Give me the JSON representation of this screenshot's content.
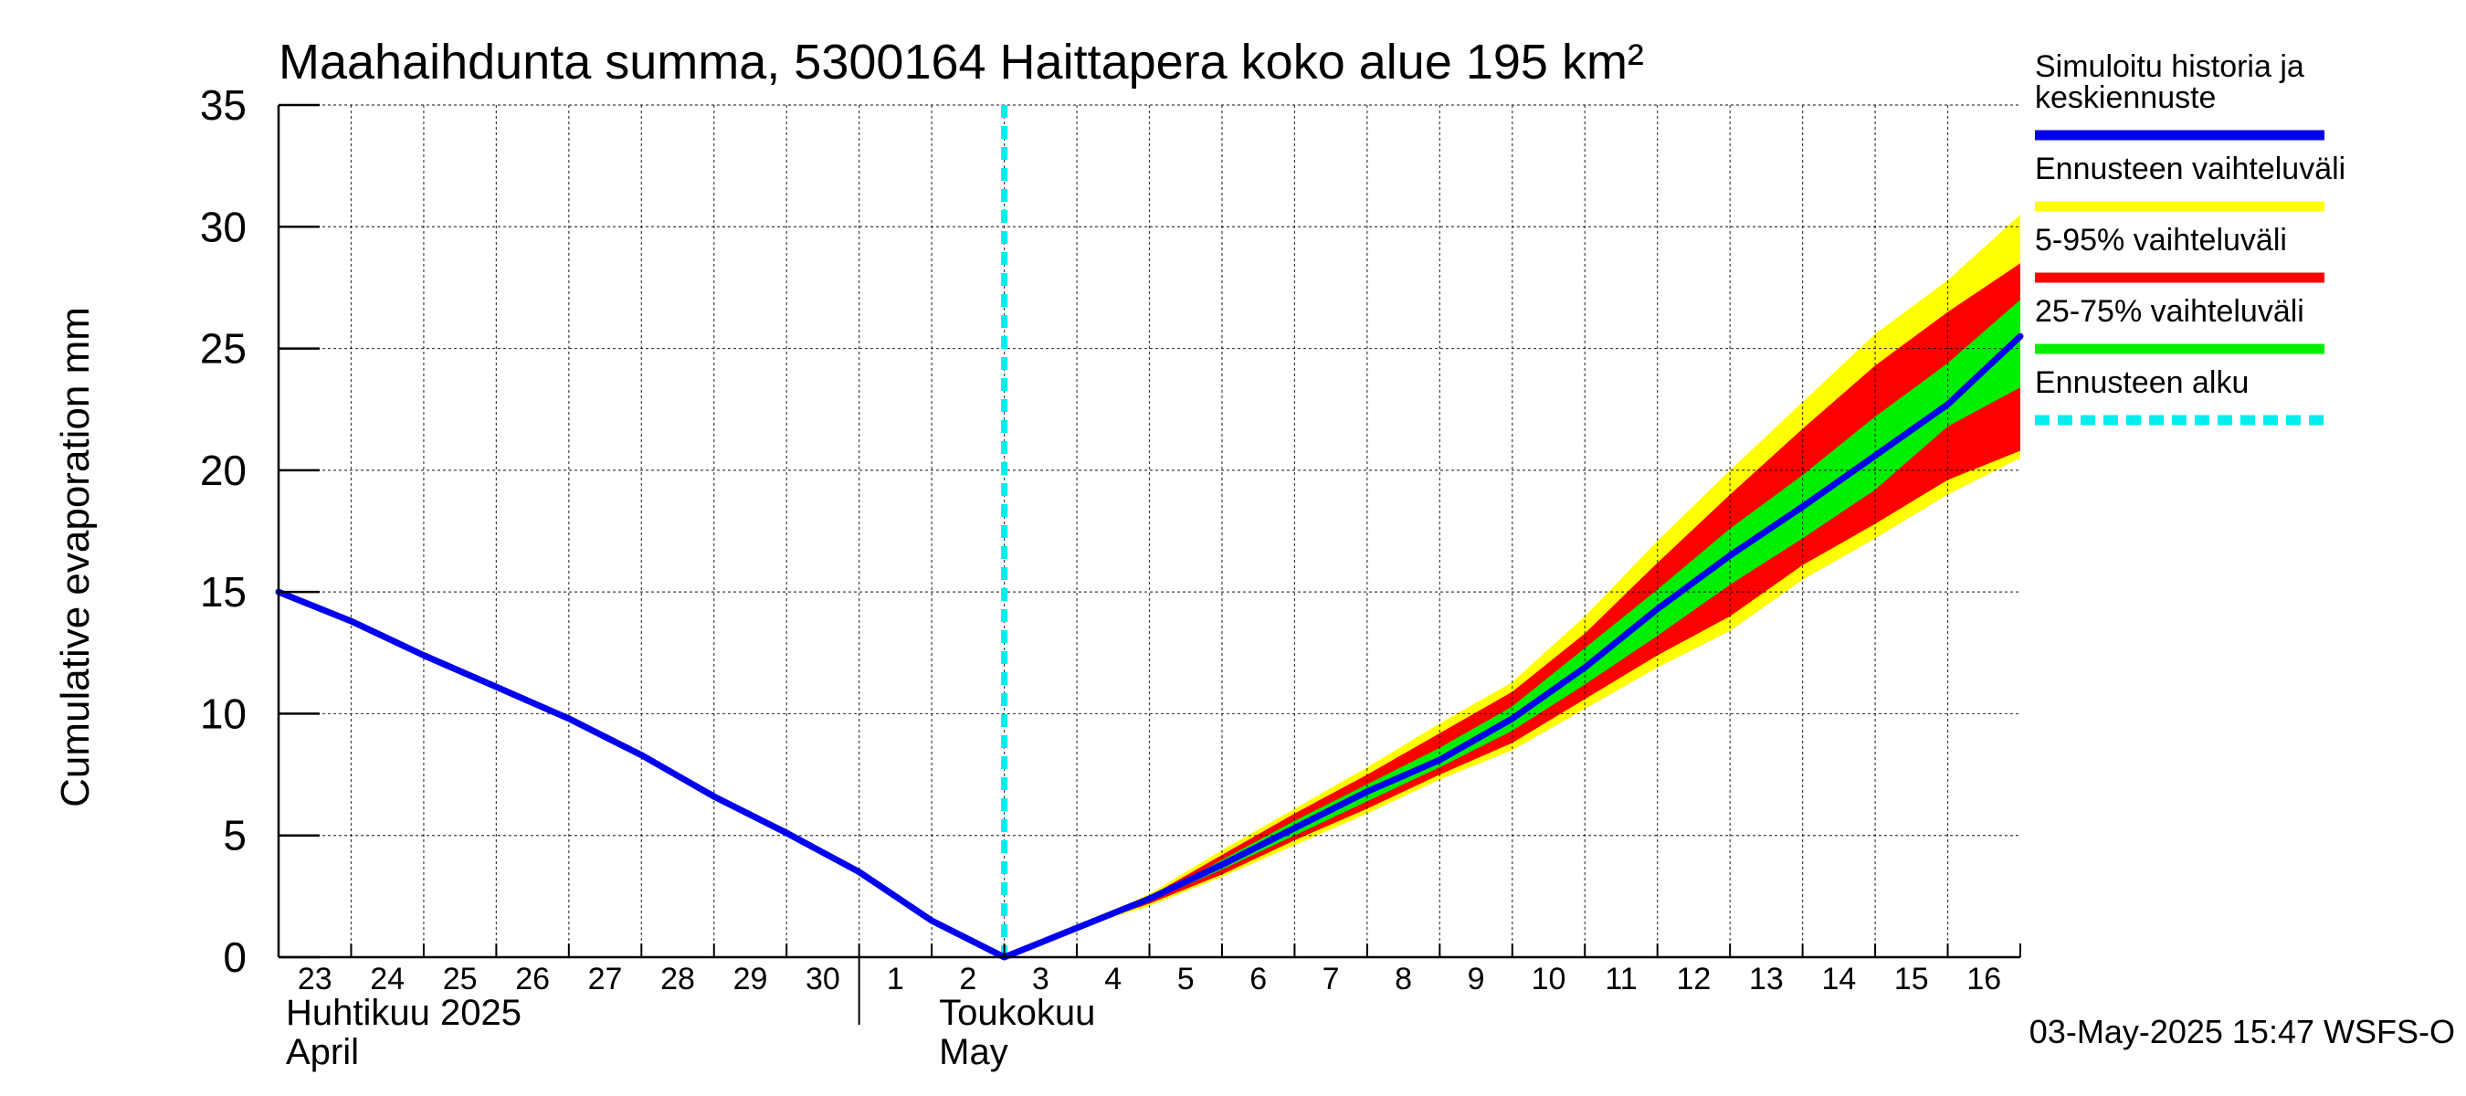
{
  "chart_data": {
    "type": "area",
    "title": "Maahaihdunta summa, 5300164 Haittapera koko alue 195 km²",
    "ylabel": "Cumulative evaporation   mm",
    "ylim": [
      0,
      35
    ],
    "yticks": [
      0,
      5,
      10,
      15,
      20,
      25,
      30,
      35
    ],
    "xlim": [
      0,
      24
    ],
    "grid": true,
    "legend_position": "right",
    "x_tick_labels": [
      {
        "x": 0,
        "label": "23"
      },
      {
        "x": 1,
        "label": "24"
      },
      {
        "x": 2,
        "label": "25"
      },
      {
        "x": 3,
        "label": "26"
      },
      {
        "x": 4,
        "label": "27"
      },
      {
        "x": 5,
        "label": "28"
      },
      {
        "x": 6,
        "label": "29"
      },
      {
        "x": 7,
        "label": "30"
      },
      {
        "x": 8,
        "label": "1"
      },
      {
        "x": 9,
        "label": "2"
      },
      {
        "x": 10,
        "label": "3"
      },
      {
        "x": 11,
        "label": "4"
      },
      {
        "x": 12,
        "label": "5"
      },
      {
        "x": 13,
        "label": "6"
      },
      {
        "x": 14,
        "label": "7"
      },
      {
        "x": 15,
        "label": "8"
      },
      {
        "x": 16,
        "label": "9"
      },
      {
        "x": 17,
        "label": "10"
      },
      {
        "x": 18,
        "label": "11"
      },
      {
        "x": 19,
        "label": "12"
      },
      {
        "x": 20,
        "label": "13"
      },
      {
        "x": 21,
        "label": "14"
      },
      {
        "x": 22,
        "label": "15"
      },
      {
        "x": 23,
        "label": "16"
      }
    ],
    "month_labels": [
      {
        "x": 0,
        "line1": "Huhtikuu  2025",
        "line2": "April"
      },
      {
        "x": 9,
        "line1": "Toukokuu",
        "line2": "May"
      }
    ],
    "month_separator_x": 8,
    "forecast_start_x": 10,
    "series": [
      {
        "name": "Simuloitu historia ja keskiennuste",
        "color": "#0000ee",
        "x": [
          0,
          1,
          2,
          3,
          4,
          5,
          6,
          7,
          8,
          9,
          10,
          11,
          12,
          13,
          14,
          15,
          16,
          17,
          18,
          19,
          20,
          21,
          22,
          23,
          24
        ],
        "y": [
          15.0,
          13.8,
          12.4,
          11.1,
          9.8,
          8.3,
          6.6,
          5.1,
          3.5,
          1.5,
          0.0,
          1.2,
          2.4,
          3.8,
          5.3,
          6.8,
          8.1,
          9.8,
          11.9,
          14.3,
          16.5,
          18.5,
          20.6,
          22.7,
          25.5
        ]
      }
    ],
    "bands": [
      {
        "name": "Ennusteen vaihteluväli",
        "color": "#ffff00",
        "x": [
          11,
          12,
          13,
          14,
          15,
          16,
          17,
          18,
          19,
          20,
          21,
          22,
          23,
          24
        ],
        "lower": [
          1.2,
          2.1,
          3.3,
          4.6,
          5.9,
          7.3,
          8.5,
          10.2,
          11.9,
          13.4,
          15.5,
          17.2,
          19.0,
          20.5
        ],
        "upper": [
          1.2,
          2.6,
          4.4,
          6.1,
          7.8,
          9.6,
          11.3,
          14.0,
          17.1,
          20.0,
          22.8,
          25.6,
          27.8,
          30.5
        ]
      },
      {
        "name": "5-95% vaihteluväli",
        "color": "#ff0000",
        "x": [
          11,
          12,
          13,
          14,
          15,
          16,
          17,
          18,
          19,
          20,
          21,
          22,
          23,
          24
        ],
        "lower": [
          1.2,
          2.2,
          3.4,
          4.8,
          6.1,
          7.5,
          8.8,
          10.6,
          12.4,
          14.0,
          16.1,
          17.8,
          19.6,
          20.8
        ],
        "upper": [
          1.2,
          2.5,
          4.2,
          5.9,
          7.5,
          9.2,
          10.9,
          13.3,
          16.2,
          19.0,
          21.7,
          24.3,
          26.5,
          28.5
        ]
      },
      {
        "name": "25-75% vaihteluväli",
        "color": "#00ee00",
        "x": [
          11,
          12,
          13,
          14,
          15,
          16,
          17,
          18,
          19,
          20,
          21,
          22,
          23,
          24
        ],
        "lower": [
          1.2,
          2.3,
          3.6,
          5.0,
          6.4,
          7.8,
          9.3,
          11.2,
          13.2,
          15.3,
          17.2,
          19.2,
          21.8,
          23.4
        ],
        "upper": [
          1.2,
          2.4,
          4.0,
          5.6,
          7.1,
          8.6,
          10.3,
          12.7,
          15.1,
          17.6,
          19.8,
          22.2,
          24.4,
          27.0
        ]
      }
    ],
    "legend": [
      {
        "name": "Simuloitu historia ja keskiennuste",
        "lines": [
          "Simuloitu historia ja",
          "keskiennuste"
        ],
        "color": "#0000ee",
        "style": "solid"
      },
      {
        "name": "Ennusteen vaihteluväli",
        "lines": [
          "Ennusteen vaihteluväli"
        ],
        "color": "#ffff00",
        "style": "solid"
      },
      {
        "name": "5-95% vaihteluväli",
        "lines": [
          "5-95% vaihteluväli"
        ],
        "color": "#ff0000",
        "style": "solid"
      },
      {
        "name": "25-75% vaihteluväli",
        "lines": [
          "25-75% vaihteluväli"
        ],
        "color": "#00ee00",
        "style": "solid"
      },
      {
        "name": "Ennusteen alku",
        "lines": [
          "Ennusteen alku"
        ],
        "color": "#00eeee",
        "style": "dashed"
      }
    ],
    "footer": "03-May-2025 15:47 WSFS-O"
  }
}
